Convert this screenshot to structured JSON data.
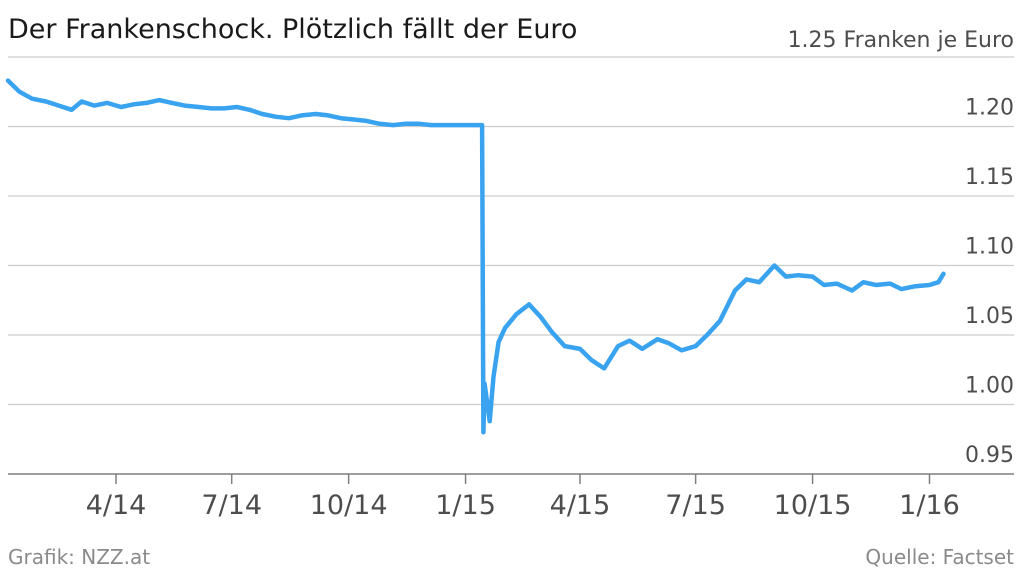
{
  "chart_data": {
    "type": "line",
    "title": "Der Frankenschock. Plötzlich fällt der Euro",
    "unit_label": "1.25 Franken je Euro",
    "xlabel": "",
    "ylabel": "",
    "y_tick_labels": [
      "1.20",
      "1.15",
      "1.10",
      "1.05",
      "1.00",
      "0.95"
    ],
    "y_ticks": [
      1.2,
      1.15,
      1.1,
      1.05,
      1.0,
      0.95
    ],
    "ylim": [
      0.95,
      1.25
    ],
    "x_tick_labels": [
      "4/14",
      "7/14",
      "10/14",
      "1/15",
      "4/15",
      "7/15",
      "10/15",
      "1/16"
    ],
    "x_ticks": [
      "2014-04-01",
      "2014-07-01",
      "2014-10-01",
      "2015-01-01",
      "2015-04-01",
      "2015-07-01",
      "2015-10-01",
      "2016-01-01"
    ],
    "xlim": [
      "2014-01-06",
      "2016-01-25"
    ],
    "grid": true,
    "line_color": "#3aa3f0",
    "series": [
      {
        "x": [
          "2014-01-06",
          "2014-01-15",
          "2014-01-25",
          "2014-02-05",
          "2014-02-15",
          "2014-02-25",
          "2014-03-05",
          "2014-03-15",
          "2014-03-25",
          "2014-04-05",
          "2014-04-15",
          "2014-04-25",
          "2014-05-05",
          "2014-05-15",
          "2014-05-25",
          "2014-06-05",
          "2014-06-15",
          "2014-06-25",
          "2014-07-05",
          "2014-07-15",
          "2014-07-25",
          "2014-08-05",
          "2014-08-15",
          "2014-08-25",
          "2014-09-05",
          "2014-09-15",
          "2014-09-25",
          "2014-10-05",
          "2014-10-15",
          "2014-10-25",
          "2014-11-05",
          "2014-11-15",
          "2014-11-25",
          "2014-12-05",
          "2014-12-15",
          "2014-12-25",
          "2015-01-05",
          "2015-01-14",
          "2015-01-15",
          "2015-01-16",
          "2015-01-20",
          "2015-01-23",
          "2015-01-27",
          "2015-02-01",
          "2015-02-10",
          "2015-02-20",
          "2015-03-01",
          "2015-03-10",
          "2015-03-20",
          "2015-04-01",
          "2015-04-10",
          "2015-04-20",
          "2015-05-01",
          "2015-05-10",
          "2015-05-20",
          "2015-06-01",
          "2015-06-10",
          "2015-06-20",
          "2015-07-01",
          "2015-07-10",
          "2015-07-20",
          "2015-08-01",
          "2015-08-10",
          "2015-08-20",
          "2015-09-01",
          "2015-09-10",
          "2015-09-20",
          "2015-10-01",
          "2015-10-10",
          "2015-10-20",
          "2015-11-01",
          "2015-11-10",
          "2015-11-20",
          "2015-12-01",
          "2015-12-10",
          "2015-12-20",
          "2016-01-01",
          "2016-01-08",
          "2016-01-12"
        ],
        "values": [
          1.233,
          1.225,
          1.22,
          1.218,
          1.215,
          1.212,
          1.218,
          1.215,
          1.217,
          1.214,
          1.216,
          1.217,
          1.219,
          1.217,
          1.215,
          1.214,
          1.213,
          1.213,
          1.214,
          1.212,
          1.209,
          1.207,
          1.206,
          1.208,
          1.209,
          1.208,
          1.206,
          1.205,
          1.204,
          1.202,
          1.201,
          1.202,
          1.202,
          1.201,
          1.201,
          1.201,
          1.201,
          1.201,
          0.98,
          1.015,
          0.988,
          1.02,
          1.045,
          1.055,
          1.065,
          1.072,
          1.063,
          1.052,
          1.042,
          1.04,
          1.032,
          1.026,
          1.042,
          1.046,
          1.04,
          1.047,
          1.044,
          1.039,
          1.042,
          1.05,
          1.06,
          1.082,
          1.09,
          1.088,
          1.1,
          1.092,
          1.093,
          1.092,
          1.086,
          1.087,
          1.082,
          1.088,
          1.086,
          1.087,
          1.083,
          1.085,
          1.086,
          1.088,
          1.094
        ]
      }
    ]
  },
  "footer": {
    "source_left": "Grafik: NZZ.at",
    "source_right": "Quelle: Factset"
  },
  "colors": {
    "gridline": "#cccccc",
    "baseline": "#7f7f7f"
  }
}
